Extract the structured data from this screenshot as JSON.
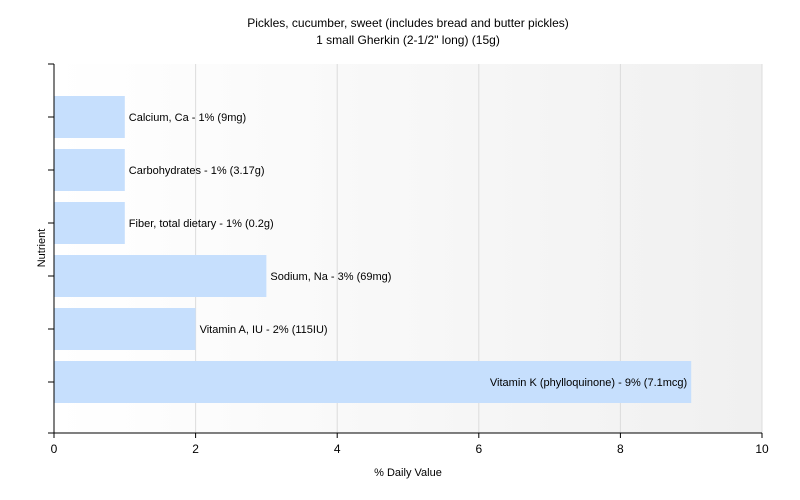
{
  "chart_data": {
    "type": "bar",
    "orientation": "horizontal",
    "title": "Pickles, cucumber, sweet (includes bread and butter pickles)",
    "subtitle": "1 small Gherkin (2-1/2\" long) (15g)",
    "xlabel": "% Daily Value",
    "ylabel": "Nutrient",
    "xlim": [
      0,
      10
    ],
    "xticks": [
      0,
      2,
      4,
      6,
      8,
      10
    ],
    "grid": true,
    "bar_color": "#c6dffd",
    "categories": [
      "Calcium, Ca",
      "Carbohydrates",
      "Fiber, total dietary",
      "Sodium, Na",
      "Vitamin A, IU",
      "Vitamin K (phylloquinone)"
    ],
    "values": [
      1,
      1,
      1,
      3,
      2,
      9
    ],
    "labels": [
      "Calcium, Ca - 1% (9mg)",
      "Carbohydrates - 1% (3.17g)",
      "Fiber, total dietary - 1% (0.2g)",
      "Sodium, Na - 3% (69mg)",
      "Vitamin A, IU - 2% (115IU)",
      "Vitamin K (phylloquinone) - 9% (7.1mcg)"
    ]
  }
}
